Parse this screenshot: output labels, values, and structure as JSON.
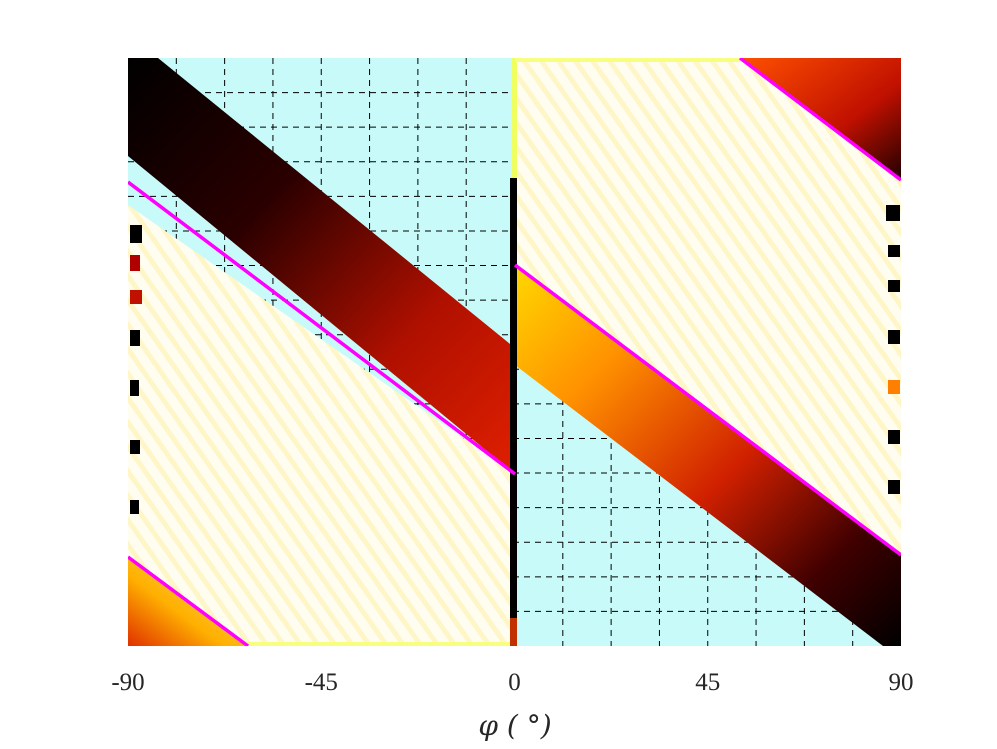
{
  "chart_data": {
    "type": "heatmap",
    "title": "",
    "xlabel": "φ ( °)",
    "ylabel": "",
    "xlim": [
      -90,
      90
    ],
    "x_ticks": [
      {
        "value": -90,
        "label": "-90"
      },
      {
        "value": -45,
        "label": "-45"
      },
      {
        "value": 0,
        "label": "0"
      },
      {
        "value": 45,
        "label": "45"
      },
      {
        "value": 90,
        "label": "90"
      }
    ],
    "grid": "dashed black, shown over the cyan regions",
    "colormap": "hot (black → red → orange → yellow → white)",
    "colors": {
      "background_region": "#c8fafa",
      "line": "#ff00ff",
      "grid": "#000000"
    },
    "magenta_lines": [
      {
        "name": "left-upper",
        "x": [
          -90,
          0
        ]
      },
      {
        "name": "left-lower",
        "x": [
          -90,
          -63
        ]
      },
      {
        "name": "right-lower",
        "x": [
          0,
          90
        ]
      },
      {
        "name": "right-upper",
        "x": [
          52,
          90
        ]
      }
    ],
    "discontinuity_x": 0
  }
}
